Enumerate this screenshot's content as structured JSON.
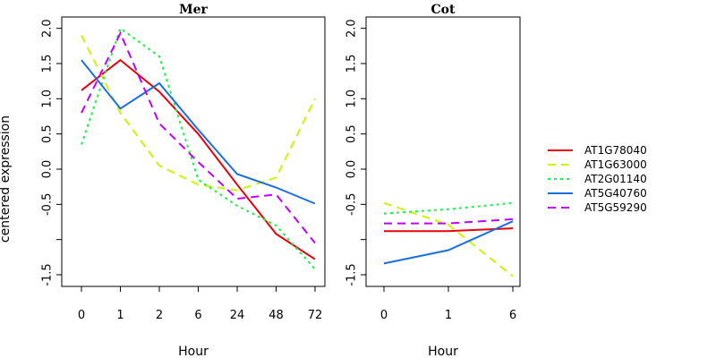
{
  "chart_data": {
    "type": "line",
    "ylabel": "centered expression",
    "ylim": [
      -1.6,
      2.2
    ],
    "y_ticks": [
      "-1.5",
      "",
      "-0.5",
      "0.0",
      "0.5",
      "1.0",
      "1.5",
      "2.0"
    ],
    "y_tick_values": [
      -1.5,
      -1.0,
      -0.5,
      0.0,
      0.5,
      1.0,
      1.5,
      2.0
    ],
    "legend": {
      "placement": "right",
      "entries": [
        {
          "name": "AT1G78040",
          "color": "#e8000b",
          "dash": "solid"
        },
        {
          "name": "AT1G63000",
          "color": "#cff400",
          "dash": "dashed"
        },
        {
          "name": "AT2G01140",
          "color": "#1ff04a",
          "dash": "dotted"
        },
        {
          "name": "AT5G40760",
          "color": "#1a6fdf",
          "dash": "solid"
        },
        {
          "name": "AT5G59290",
          "color": "#c000ff",
          "dash": "dashed"
        }
      ]
    },
    "panels": [
      {
        "title": "Mer",
        "xlabel": "Hour",
        "categories": [
          "0",
          "1",
          "2",
          "6",
          "24",
          "48",
          "72"
        ],
        "series": [
          {
            "name": "AT1G78040",
            "values": [
              1.12,
              1.55,
              1.1,
              0.5,
              -0.22,
              -0.92,
              -1.28
            ]
          },
          {
            "name": "AT1G63000",
            "values": [
              1.9,
              0.8,
              0.05,
              -0.22,
              -0.3,
              -0.12,
              1.0
            ]
          },
          {
            "name": "AT2G01140",
            "values": [
              0.35,
              2.0,
              1.6,
              -0.15,
              -0.52,
              -0.8,
              -1.42
            ]
          },
          {
            "name": "AT5G40760",
            "values": [
              1.55,
              0.86,
              1.22,
              0.56,
              -0.07,
              -0.26,
              -0.49
            ]
          },
          {
            "name": "AT5G59290",
            "values": [
              0.8,
              1.93,
              0.65,
              0.1,
              -0.42,
              -0.36,
              -1.05
            ]
          }
        ]
      },
      {
        "title": "Cot",
        "xlabel": "Hour",
        "categories": [
          "0",
          "1",
          "6"
        ],
        "series": [
          {
            "name": "AT1G78040",
            "values": [
              -0.88,
              -0.88,
              -0.84
            ]
          },
          {
            "name": "AT1G63000",
            "values": [
              -0.48,
              -0.79,
              -1.52
            ]
          },
          {
            "name": "AT2G01140",
            "values": [
              -0.63,
              -0.57,
              -0.48
            ]
          },
          {
            "name": "AT5G40760",
            "values": [
              -1.34,
              -1.15,
              -0.74
            ]
          },
          {
            "name": "AT5G59290",
            "values": [
              -0.77,
              -0.77,
              -0.71
            ]
          }
        ]
      }
    ]
  }
}
